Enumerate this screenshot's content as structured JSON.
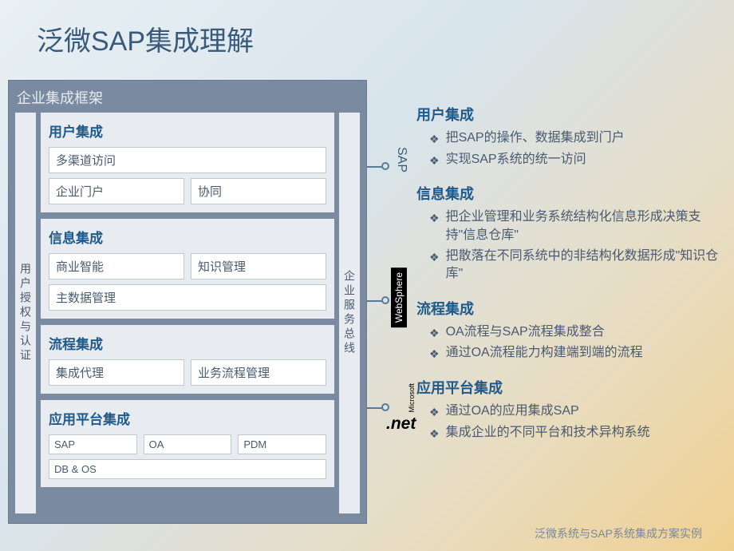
{
  "title": "泛微SAP集成理解",
  "frame": {
    "title": "企业集成框架",
    "left_col": "用户授权与认证",
    "right_col": "企业服务总线",
    "sections": [
      {
        "title": "用户集成",
        "rows": [
          [
            "多渠道访问"
          ],
          [
            "企业门户",
            "协同"
          ]
        ]
      },
      {
        "title": "信息集成",
        "rows": [
          [
            "商业智能",
            "知识管理"
          ],
          [
            "主数据管理"
          ]
        ]
      },
      {
        "title": "流程集成",
        "rows": [
          [
            "集成代理",
            "业务流程管理"
          ]
        ]
      },
      {
        "title": "应用平台集成",
        "rows": [
          [
            "SAP",
            "OA",
            "PDM"
          ],
          [
            "DB & OS"
          ]
        ],
        "small": true
      }
    ]
  },
  "topics": [
    {
      "title": "用户集成",
      "bullets": [
        "把SAP的操作、数据集成到门户",
        "实现SAP系统的统一访问"
      ]
    },
    {
      "title": "信息集成",
      "bullets": [
        "把企业管理和业务系统结构化信息形成决策支持\"信息仓库\"",
        "把散落在不同系统中的非结构化数据形成\"知识仓库\""
      ]
    },
    {
      "title": "流程集成",
      "bullets": [
        "OA流程与SAP流程集成整合",
        "通过OA流程能力构建端到端的流程"
      ]
    },
    {
      "title": "应用平台集成",
      "bullets": [
        "通过OA的应用集成SAP",
        "集成企业的不同平台和技术异构系统"
      ]
    }
  ],
  "badges": {
    "sap": "SAP",
    "websphere": "WebSphere",
    "microsoft": "Microsoft",
    "net": ".net"
  },
  "footer": "泛微系统与SAP系统集成方案实例",
  "colors": {
    "title_color": "#3a5a7a",
    "frame_bg": "#7a8aa0",
    "section_bg": "#e8ecf0",
    "topic_title": "#1f5a8a",
    "body_text": "#4a5a70"
  }
}
